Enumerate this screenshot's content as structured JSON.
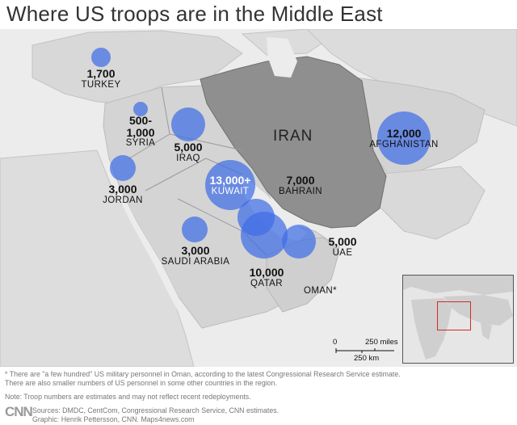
{
  "title": "Where US troops are in the Middle East",
  "colors": {
    "bubble": "#406ee6",
    "iran": "#8f8f8f",
    "land": "#d6d6d6",
    "sea": "#ececec",
    "inset_box": "#d22a2a"
  },
  "regions": {
    "iran": "IRAN",
    "oman": "OMAN*"
  },
  "deployments": [
    {
      "id": "turkey",
      "count": "1,700",
      "name": "TURKEY",
      "troops": 1700
    },
    {
      "id": "syria",
      "count_line1": "500-",
      "count_line2": "1,000",
      "name": "SYRIA",
      "troops": 1000
    },
    {
      "id": "iraq",
      "count": "5,000",
      "name": "IRAQ",
      "troops": 5000
    },
    {
      "id": "jordan",
      "count": "3,000",
      "name": "JORDAN",
      "troops": 3000
    },
    {
      "id": "kuwait",
      "count": "13,000+",
      "name": "KUWAIT",
      "troops": 13000
    },
    {
      "id": "bahrain",
      "count": "7,000",
      "name": "BAHRAIN",
      "troops": 7000
    },
    {
      "id": "saudi",
      "count": "3,000",
      "name": "SAUDI ARABIA",
      "troops": 3000
    },
    {
      "id": "qatar",
      "count": "10,000",
      "name": "QATAR",
      "troops": 10000
    },
    {
      "id": "uae",
      "count": "5,000",
      "name": "UAE",
      "troops": 5000
    },
    {
      "id": "afghanistan",
      "count": "12,000",
      "name": "AFGHANISTAN",
      "troops": 12000
    }
  ],
  "scale": {
    "zero": "0",
    "miles": "250 miles",
    "km": "250 km"
  },
  "footnotes": {
    "line1": "* There are \"a few hundred\" US military personnel in Oman, according to the latest Congressional Research Service estimate.",
    "line2": "There are also smaller numbers of US personnel in some other countries in the region.",
    "note": "Note: Troop numbers are estimates and may not reflect recent redeployments.",
    "logo": "CNN",
    "sources": "Sources: DMDC, CentCom, Congressional Research Service, CNN estimates.",
    "graphic": "Graphic: Henrik Pettersson, CNN. Maps4news.com"
  }
}
